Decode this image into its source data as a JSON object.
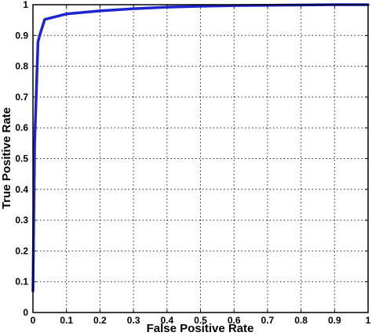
{
  "chart_data": {
    "type": "line",
    "title": "",
    "xlabel": "False Positive Rate",
    "ylabel": "True Positive Rate",
    "xlim": [
      0,
      1
    ],
    "ylim": [
      0,
      1
    ],
    "grid": true,
    "x_ticks": [
      "0",
      "0.1",
      "0.2",
      "0.3",
      "0.4",
      "0.5",
      "0.6",
      "0.7",
      "0.8",
      "0.9",
      "1"
    ],
    "y_ticks": [
      "0",
      "0.1",
      "0.2",
      "0.3",
      "0.4",
      "0.5",
      "0.6",
      "0.7",
      "0.8",
      "0.9",
      "1"
    ],
    "series": [
      {
        "color": "#1f25cc",
        "x": [
          0,
          0.005,
          0.015,
          0.02,
          0.035,
          0.1,
          0.2,
          0.3,
          0.4,
          0.5,
          0.6,
          0.7,
          0.8,
          0.9,
          1
        ],
        "y": [
          0.07,
          0.55,
          0.88,
          0.9,
          0.952,
          0.97,
          0.98,
          0.987,
          0.992,
          0.995,
          0.997,
          0.998,
          0.999,
          1.0,
          1.0
        ]
      }
    ]
  }
}
